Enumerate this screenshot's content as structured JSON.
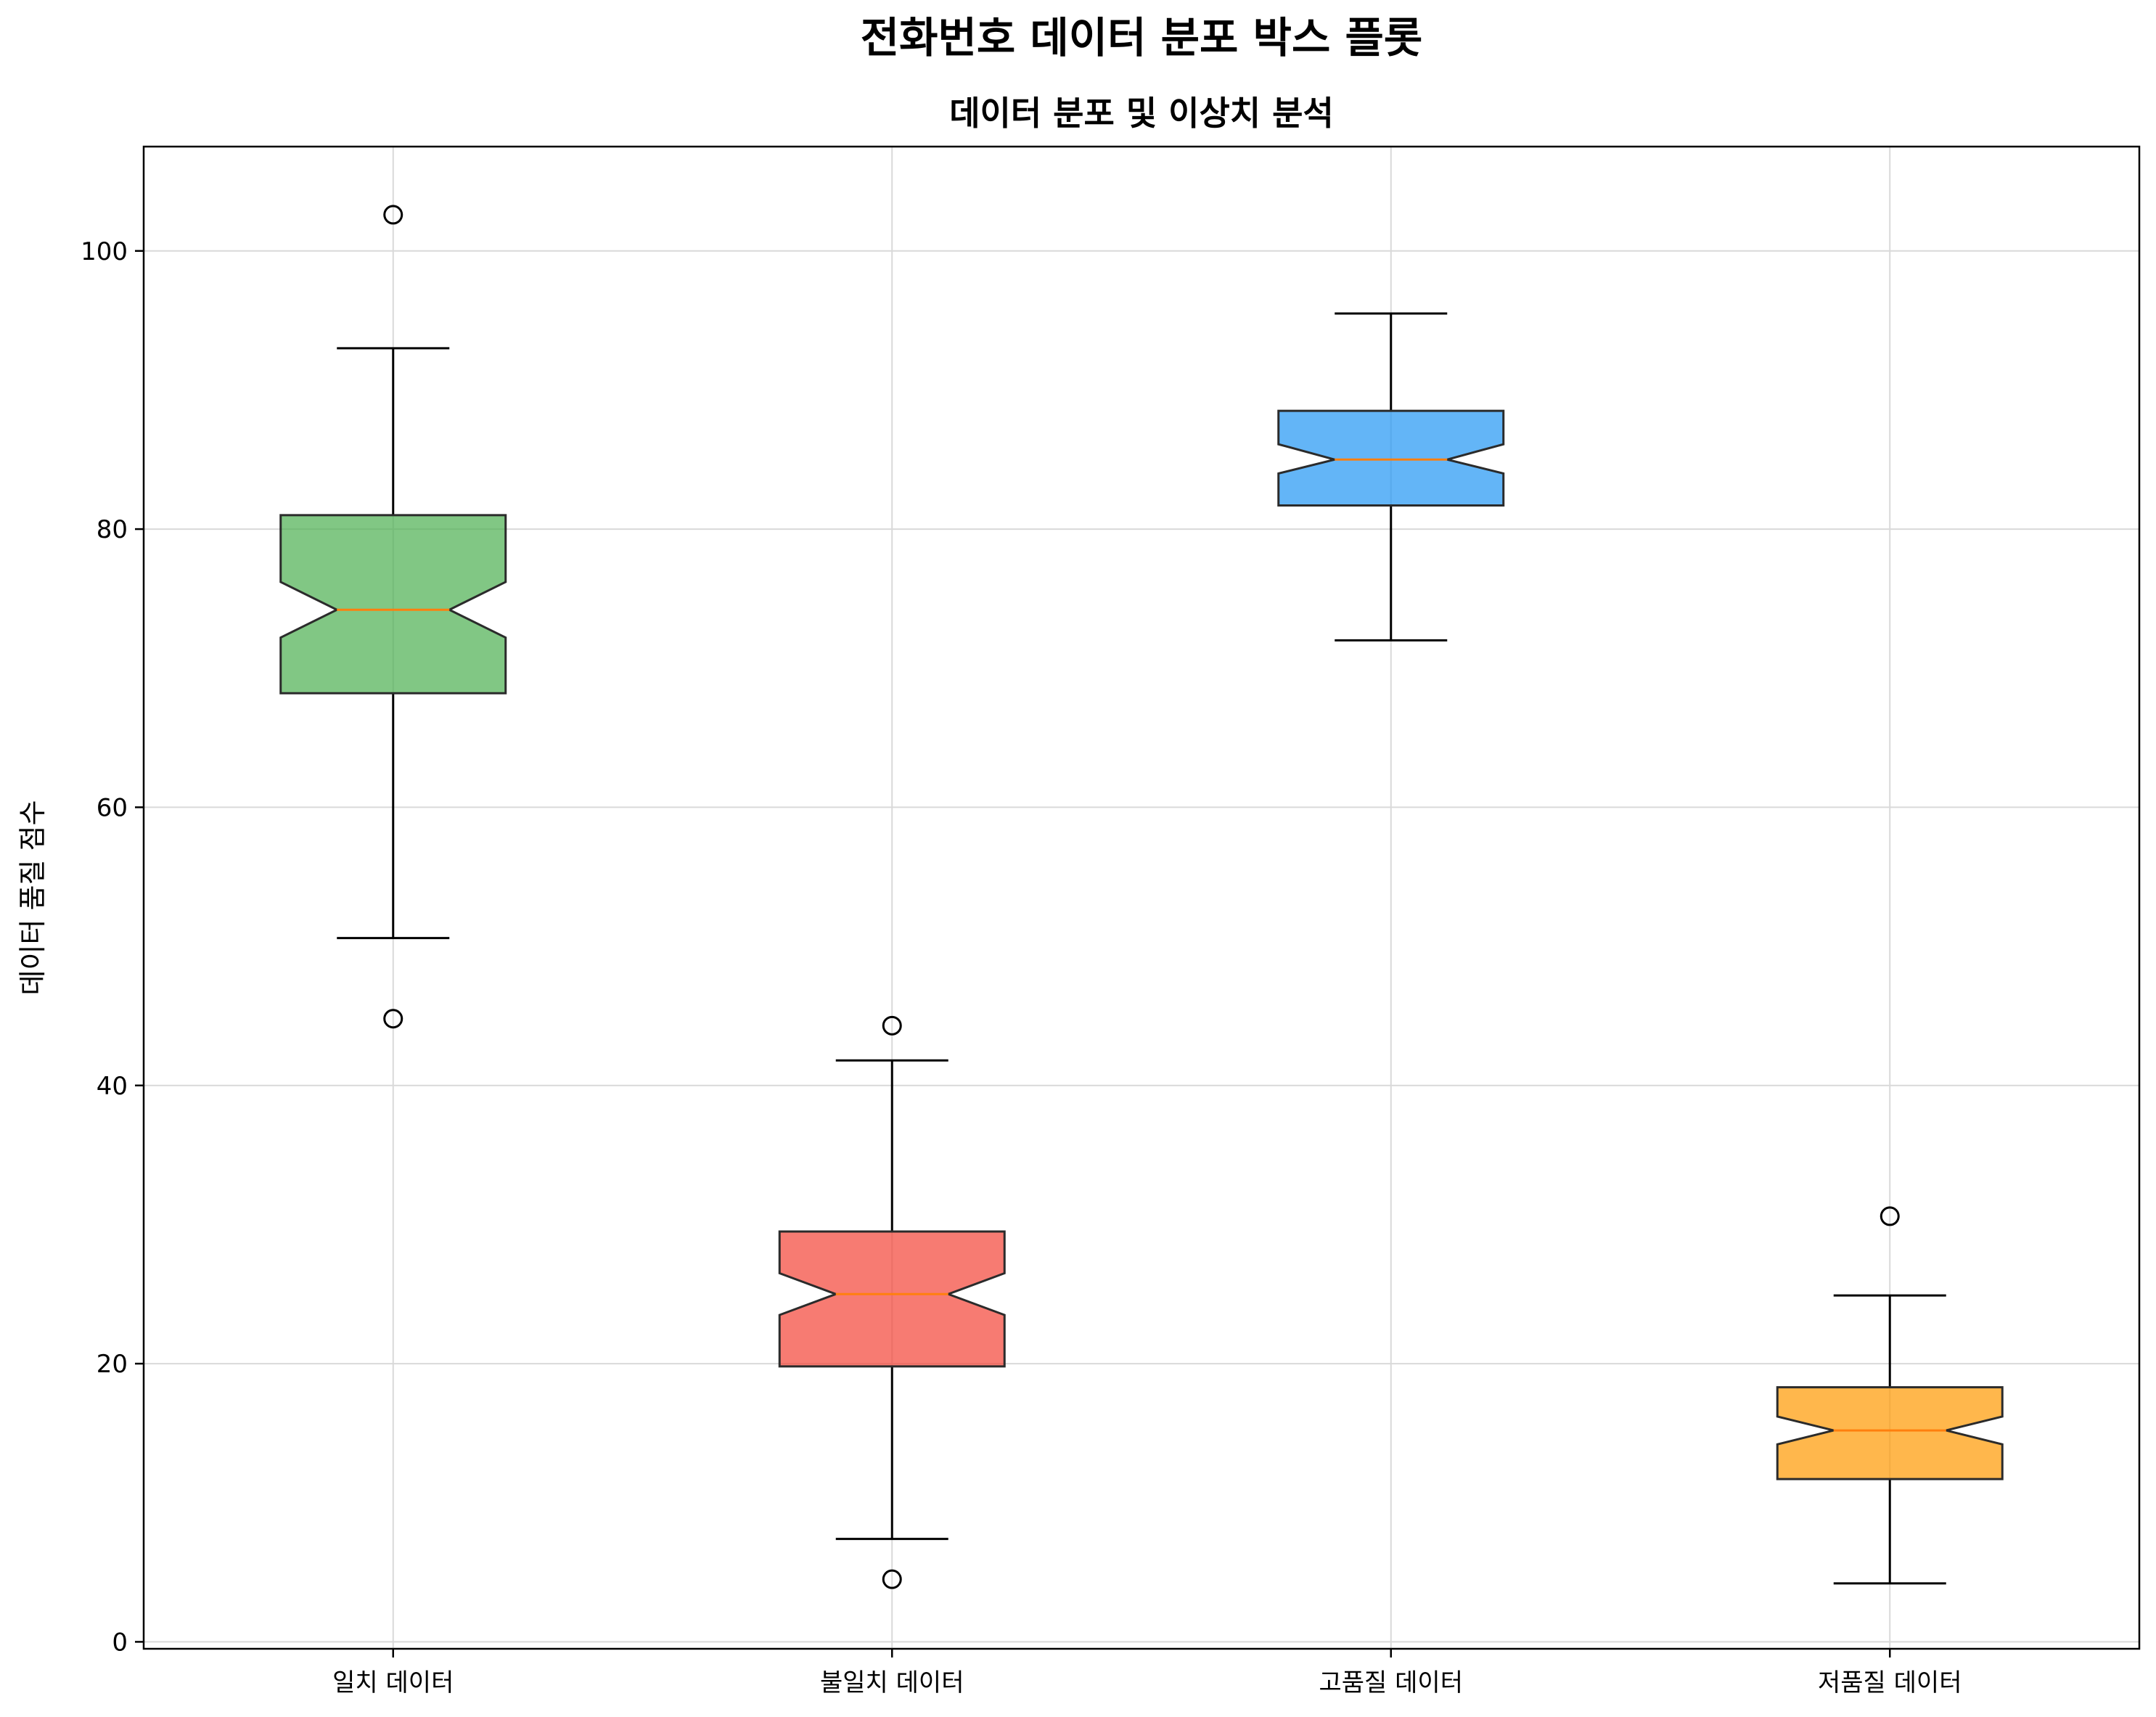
{
  "chart_data": {
    "type": "box",
    "title": "전화번호 데이터 분포 박스 플롯",
    "subtitle": "데이터 분포 및 이상치 분석",
    "xlabel": "",
    "ylabel": "데이터 품질 점수",
    "ylim": [
      -0.5,
      107.5
    ],
    "yticks": [
      0,
      20,
      40,
      60,
      80,
      100
    ],
    "grid": true,
    "notched": true,
    "categories": [
      "일치 데이터",
      "불일치 데이터",
      "고품질 데이터",
      "저품질 데이터"
    ],
    "boxes": [
      {
        "category": "일치 데이터",
        "whisker_low": 50.6,
        "q1": 68.2,
        "median": 74.2,
        "q3": 81.0,
        "whisker_high": 93.0,
        "notch_low": 72.2,
        "notch_high": 76.2,
        "fliers": [
          102.6,
          44.8
        ],
        "color": "#4caf50"
      },
      {
        "category": "불일치 데이터",
        "whisker_low": 7.4,
        "q1": 19.8,
        "median": 25.0,
        "q3": 29.5,
        "whisker_high": 41.8,
        "notch_low": 23.5,
        "notch_high": 26.5,
        "fliers": [
          44.3,
          4.5
        ],
        "color": "#f44336"
      },
      {
        "category": "고품질 데이터",
        "whisker_low": 72.0,
        "q1": 81.7,
        "median": 85.0,
        "q3": 88.5,
        "whisker_high": 95.5,
        "notch_low": 84.0,
        "notch_high": 86.1,
        "fliers": [],
        "color": "#2196f3"
      },
      {
        "category": "저품질 데이터",
        "whisker_low": 4.2,
        "q1": 11.7,
        "median": 15.2,
        "q3": 18.3,
        "whisker_high": 24.9,
        "notch_low": 14.2,
        "notch_high": 16.2,
        "fliers": [
          30.6
        ],
        "color": "#ff9800"
      }
    ]
  }
}
